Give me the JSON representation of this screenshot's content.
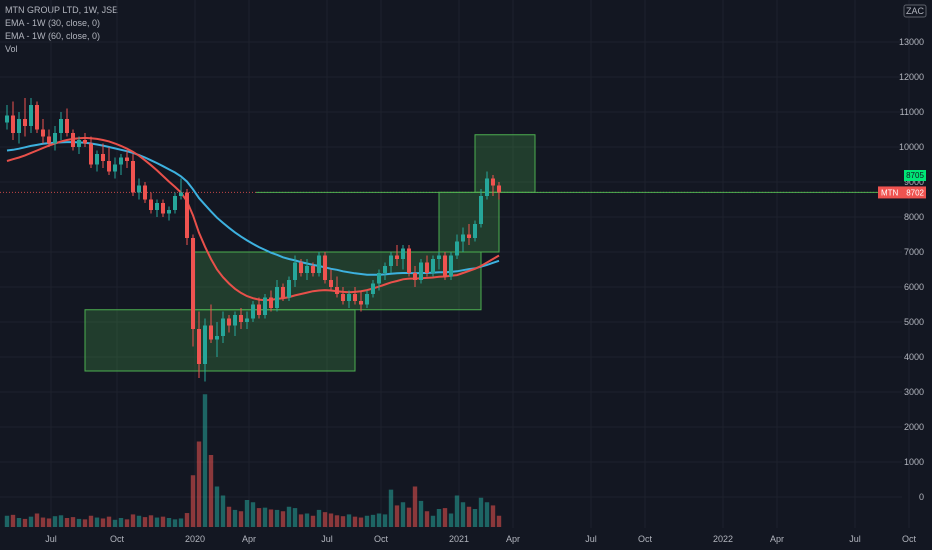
{
  "legend": {
    "title": "MTN GROUP LTD, 1W, JSE",
    "ema30": "EMA - 1W (30, close, 0)",
    "ema60": "EMA - 1W (60, close, 0)",
    "vol": "Vol"
  },
  "currency_badge": "ZAC",
  "last_price_tags": {
    "symbol_label": "MTN",
    "last_price": "8702",
    "level_label": "8705"
  },
  "colors": {
    "background": "#131722",
    "up": "#26a69a",
    "down": "#ef5350",
    "ema30": "#3db1df",
    "ema60": "#e8504a",
    "zone_fill": "rgba(76,175,80,0.25)",
    "zone_stroke": "#4caf50",
    "hline": "#4caf50"
  },
  "chart_data": {
    "type": "candlestick",
    "interval": "1W",
    "y_ticks": [
      0,
      1000,
      2000,
      3000,
      4000,
      5000,
      6000,
      7000,
      8000,
      9000,
      10000,
      11000,
      12000,
      13000
    ],
    "x_ticks": [
      "Jul",
      "Oct",
      "2020",
      "Apr",
      "Jul",
      "Oct",
      "2021",
      "Apr",
      "Jul",
      "Oct",
      "2022",
      "Apr",
      "Jul",
      "Oct"
    ],
    "horizontal_line_price": 8705,
    "rectangles": [
      {
        "start_week": 13,
        "end_week": 58,
        "low": 3600,
        "high": 5350
      },
      {
        "start_week": 31,
        "end_week": 79,
        "low": 5350,
        "high": 7000
      },
      {
        "start_week": 72,
        "end_week": 82,
        "low": 7000,
        "high": 8705
      },
      {
        "start_week": 78,
        "end_week": 88,
        "low": 8705,
        "high": 10350
      }
    ],
    "candles": [
      [
        10700,
        11200,
        10500,
        10900,
        250
      ],
      [
        10900,
        11300,
        10200,
        10400,
        270
      ],
      [
        10400,
        11000,
        10100,
        10800,
        200
      ],
      [
        10800,
        11400,
        10300,
        10600,
        180
      ],
      [
        10600,
        11400,
        10400,
        11200,
        230
      ],
      [
        11200,
        11300,
        10400,
        10500,
        300
      ],
      [
        10500,
        10800,
        10100,
        10300,
        210
      ],
      [
        10300,
        10500,
        10000,
        10100,
        190
      ],
      [
        10100,
        10600,
        9900,
        10400,
        240
      ],
      [
        10400,
        11000,
        10200,
        10800,
        260
      ],
      [
        10800,
        11100,
        10300,
        10400,
        200
      ],
      [
        10400,
        10500,
        9900,
        10000,
        220
      ],
      [
        10000,
        10300,
        9800,
        10200,
        180
      ],
      [
        10200,
        10400,
        10000,
        10100,
        170
      ],
      [
        10100,
        10300,
        9400,
        9500,
        250
      ],
      [
        9500,
        9900,
        9300,
        9800,
        210
      ],
      [
        9800,
        10100,
        9400,
        9600,
        190
      ],
      [
        9600,
        10000,
        9200,
        9300,
        230
      ],
      [
        9300,
        9700,
        9100,
        9500,
        160
      ],
      [
        9500,
        9800,
        9200,
        9700,
        200
      ],
      [
        9700,
        9900,
        9400,
        9600,
        170
      ],
      [
        9600,
        9800,
        8600,
        8700,
        280
      ],
      [
        8700,
        9100,
        8500,
        8900,
        250
      ],
      [
        8900,
        9000,
        8400,
        8500,
        220
      ],
      [
        8500,
        8700,
        8100,
        8200,
        260
      ],
      [
        8200,
        8500,
        8000,
        8400,
        210
      ],
      [
        8400,
        8500,
        8000,
        8100,
        230
      ],
      [
        8100,
        8300,
        7900,
        8200,
        200
      ],
      [
        8200,
        8700,
        8100,
        8600,
        170
      ],
      [
        8600,
        9100,
        8500,
        8700,
        190
      ],
      [
        8700,
        8800,
        7200,
        7400,
        310
      ],
      [
        7400,
        7500,
        4300,
        4800,
        1150
      ],
      [
        4800,
        5300,
        3400,
        3800,
        1900
      ],
      [
        3800,
        5100,
        3300,
        4900,
        2950
      ],
      [
        4900,
        5500,
        4400,
        4500,
        1600
      ],
      [
        4500,
        5000,
        4000,
        4600,
        900
      ],
      [
        4600,
        5300,
        4400,
        5100,
        700
      ],
      [
        5100,
        5200,
        4700,
        4900,
        450
      ],
      [
        4900,
        5300,
        4600,
        5200,
        380
      ],
      [
        5200,
        5400,
        4800,
        5000,
        350
      ],
      [
        5000,
        5300,
        4800,
        5100,
        600
      ],
      [
        5100,
        5600,
        5000,
        5500,
        550
      ],
      [
        5500,
        5700,
        5100,
        5200,
        420
      ],
      [
        5200,
        5800,
        5100,
        5700,
        430
      ],
      [
        5700,
        5900,
        5300,
        5400,
        390
      ],
      [
        5400,
        6200,
        5300,
        6000,
        380
      ],
      [
        6000,
        6100,
        5600,
        5700,
        350
      ],
      [
        5700,
        6300,
        5600,
        6200,
        450
      ],
      [
        6200,
        6900,
        6000,
        6700,
        420
      ],
      [
        6700,
        6800,
        6300,
        6400,
        280
      ],
      [
        6400,
        6800,
        6200,
        6600,
        300
      ],
      [
        6600,
        6700,
        6300,
        6400,
        250
      ],
      [
        6400,
        7000,
        6300,
        6900,
        380
      ],
      [
        6900,
        7000,
        6100,
        6200,
        330
      ],
      [
        6200,
        6500,
        5900,
        6000,
        300
      ],
      [
        6000,
        6300,
        5700,
        5800,
        260
      ],
      [
        5800,
        6000,
        5500,
        5600,
        240
      ],
      [
        5600,
        5900,
        5400,
        5800,
        280
      ],
      [
        5800,
        6000,
        5500,
        5600,
        230
      ],
      [
        5600,
        5900,
        5300,
        5500,
        210
      ],
      [
        5500,
        5900,
        5400,
        5800,
        250
      ],
      [
        5800,
        6200,
        5700,
        6100,
        270
      ],
      [
        6100,
        6500,
        5900,
        6400,
        300
      ],
      [
        6400,
        6700,
        6200,
        6600,
        280
      ],
      [
        6600,
        7000,
        6400,
        6900,
        830
      ],
      [
        6900,
        7200,
        6600,
        6800,
        480
      ],
      [
        6800,
        7200,
        6500,
        7100,
        550
      ],
      [
        7100,
        7200,
        6300,
        6400,
        430
      ],
      [
        6400,
        6600,
        6000,
        6200,
        900
      ],
      [
        6200,
        6800,
        6100,
        6700,
        580
      ],
      [
        6700,
        6900,
        6300,
        6400,
        350
      ],
      [
        6400,
        6900,
        6300,
        6800,
        250
      ],
      [
        6800,
        7000,
        6500,
        6900,
        400
      ],
      [
        6900,
        7000,
        6200,
        6300,
        420
      ],
      [
        6300,
        7000,
        6200,
        6900,
        300
      ],
      [
        6900,
        7500,
        6800,
        7300,
        700
      ],
      [
        7300,
        7700,
        7000,
        7500,
        550
      ],
      [
        7500,
        7800,
        7200,
        7400,
        450
      ],
      [
        7400,
        7900,
        7300,
        7800,
        400
      ],
      [
        7800,
        8800,
        7700,
        8600,
        650
      ],
      [
        8600,
        9300,
        8500,
        9100,
        550
      ],
      [
        9100,
        9200,
        8600,
        8900,
        480
      ],
      [
        8900,
        9000,
        8500,
        8702,
        250
      ]
    ],
    "ema30": [
      9900,
      9920,
      9950,
      9990,
      10030,
      10060,
      10090,
      10110,
      10120,
      10130,
      10140,
      10140,
      10130,
      10120,
      10100,
      10070,
      10040,
      10000,
      9960,
      9920,
      9880,
      9830,
      9770,
      9700,
      9620,
      9540,
      9450,
      9360,
      9270,
      9160,
      9010,
      8790,
      8540,
      8350,
      8160,
      7980,
      7830,
      7690,
      7560,
      7440,
      7330,
      7230,
      7140,
      7060,
      6980,
      6920,
      6850,
      6800,
      6760,
      6710,
      6670,
      6630,
      6600,
      6560,
      6520,
      6490,
      6450,
      6420,
      6390,
      6370,
      6350,
      6350,
      6350,
      6360,
      6380,
      6390,
      6400,
      6400,
      6390,
      6400,
      6400,
      6410,
      6420,
      6420,
      6430,
      6450,
      6480,
      6510,
      6530,
      6580,
      6630,
      6690,
      6750
    ],
    "ema60": [
      9600,
      9650,
      9700,
      9760,
      9830,
      9900,
      9970,
      10040,
      10100,
      10160,
      10200,
      10230,
      10250,
      10260,
      10250,
      10230,
      10200,
      10160,
      10100,
      10030,
      9950,
      9860,
      9750,
      9620,
      9480,
      9330,
      9170,
      9010,
      8860,
      8700,
      8450,
      8050,
      7550,
      7150,
      6800,
      6500,
      6280,
      6100,
      5950,
      5830,
      5740,
      5680,
      5640,
      5620,
      5630,
      5660,
      5680,
      5710,
      5760,
      5800,
      5840,
      5880,
      5900,
      5910,
      5900,
      5880,
      5860,
      5850,
      5860,
      5880,
      5910,
      5960,
      6010,
      6070,
      6130,
      6170,
      6220,
      6240,
      6240,
      6250,
      6260,
      6270,
      6290,
      6300,
      6320,
      6340,
      6400,
      6460,
      6520,
      6600,
      6700,
      6800,
      6900
    ]
  }
}
